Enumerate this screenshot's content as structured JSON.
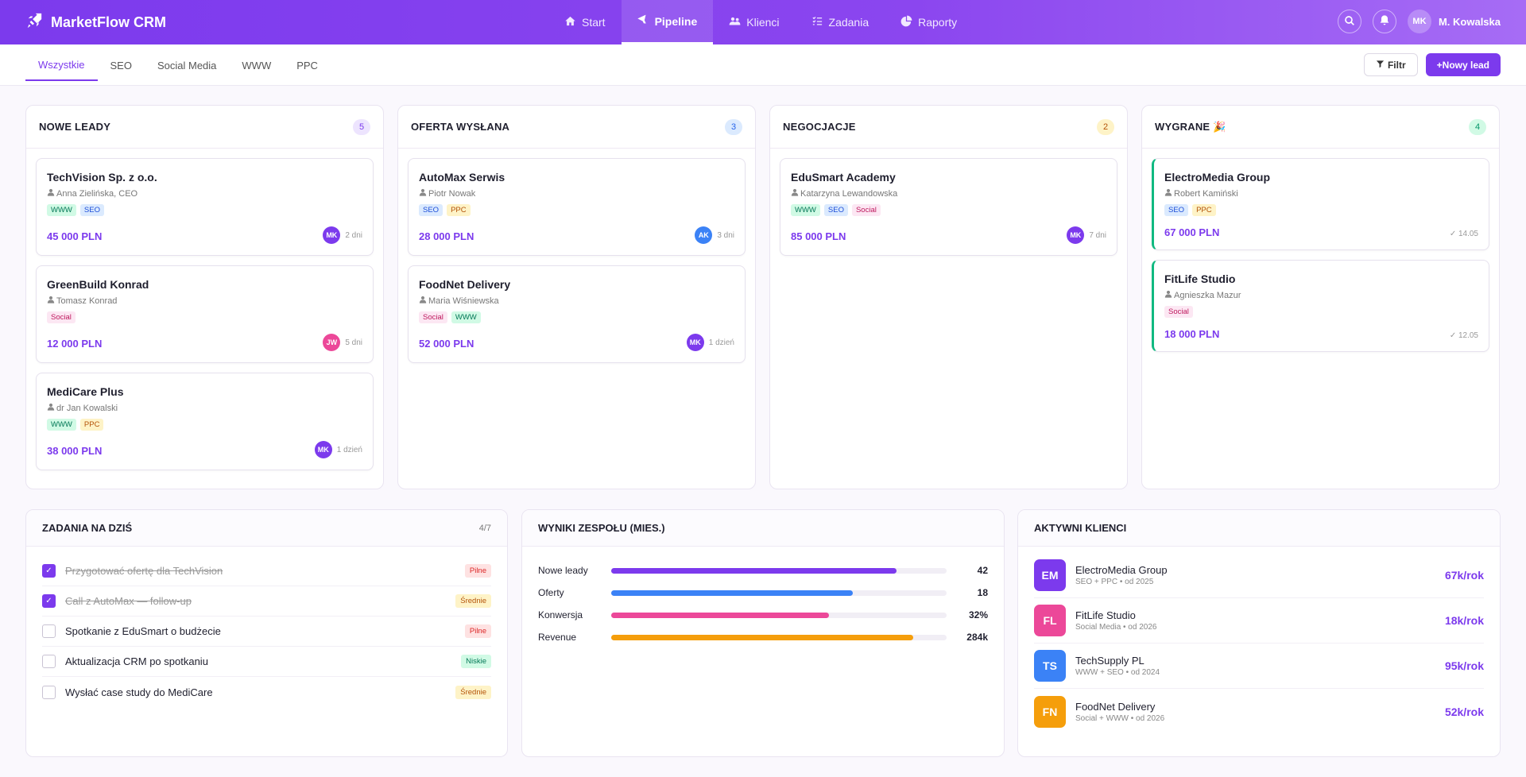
{
  "app": {
    "title": "MarketFlow CRM"
  },
  "nav": [
    {
      "label": "Start",
      "icon": "home-icon"
    },
    {
      "label": "Pipeline",
      "icon": "funnel-icon"
    },
    {
      "label": "Klienci",
      "icon": "users-icon"
    },
    {
      "label": "Zadania",
      "icon": "tasks-icon"
    },
    {
      "label": "Raporty",
      "icon": "pie-chart-icon"
    }
  ],
  "user": {
    "initials": "MK",
    "name": "M. Kowalska"
  },
  "filters": [
    "Wszystkie",
    "SEO",
    "Social Media",
    "WWW",
    "PPC"
  ],
  "actions": {
    "filter": "Filtr",
    "new_lead": "+Nowy lead"
  },
  "columns": [
    {
      "title": "NOWE LEADY",
      "count": "5",
      "cards": [
        {
          "title": "TechVision Sp. z o.o.",
          "contact": "Anna Zielińska, CEO",
          "tags": [
            "WWW",
            "SEO"
          ],
          "value": "45 000 PLN",
          "owner": "MK",
          "time": "2 dni"
        },
        {
          "title": "GreenBuild Konrad",
          "contact": "Tomasz Konrad",
          "tags": [
            "Social"
          ],
          "value": "12 000 PLN",
          "owner": "JW",
          "time": "5 dni"
        },
        {
          "title": "MediCare Plus",
          "contact": "dr Jan Kowalski",
          "tags": [
            "WWW",
            "PPC"
          ],
          "value": "38 000 PLN",
          "owner": "MK",
          "time": "1 dzień"
        }
      ]
    },
    {
      "title": "OFERTA WYSŁANA",
      "count": "3",
      "cards": [
        {
          "title": "AutoMax Serwis",
          "contact": "Piotr Nowak",
          "tags": [
            "SEO",
            "PPC"
          ],
          "value": "28 000 PLN",
          "owner": "AK",
          "time": "3 dni"
        },
        {
          "title": "FoodNet Delivery",
          "contact": "Maria Wiśniewska",
          "tags": [
            "Social",
            "WWW"
          ],
          "value": "52 000 PLN",
          "owner": "MK",
          "time": "1 dzień"
        }
      ]
    },
    {
      "title": "NEGOCJACJE",
      "count": "2",
      "cards": [
        {
          "title": "EduSmart Academy",
          "contact": "Katarzyna Lewandowska",
          "tags": [
            "WWW",
            "SEO",
            "Social"
          ],
          "value": "85 000 PLN",
          "owner": "MK",
          "time": "7 dni"
        }
      ]
    },
    {
      "title": "WYGRANE 🎉",
      "count": "4",
      "cards": [
        {
          "title": "ElectroMedia Group",
          "contact": "Robert Kamiński",
          "tags": [
            "SEO",
            "PPC"
          ],
          "value": "67 000 PLN",
          "date": "✓ 14.05"
        },
        {
          "title": "FitLife Studio",
          "contact": "Agnieszka Mazur",
          "tags": [
            "Social"
          ],
          "value": "18 000 PLN",
          "date": "✓ 12.05"
        }
      ]
    }
  ],
  "avatar_colors": {
    "MK": "#7c3aed",
    "JW": "#ec4899",
    "AK": "#3b82f6"
  },
  "tasks": {
    "title": "ZADANIA NA DZIŚ",
    "progress": "4/7",
    "items": [
      {
        "text": "Przygotować ofertę dla TechVision",
        "done": true,
        "priority": "Pilne"
      },
      {
        "text": "Call z AutoMax — follow-up",
        "done": true,
        "priority": "Średnie"
      },
      {
        "text": "Spotkanie z EduSmart o budżecie",
        "done": false,
        "priority": "Pilne"
      },
      {
        "text": "Aktualizacja CRM po spotkaniu",
        "done": false,
        "priority": "Niskie"
      },
      {
        "text": "Wysłać case study do MediCare",
        "done": false,
        "priority": "Średnie"
      }
    ]
  },
  "team": {
    "title": "WYNIKI ZESPOŁU (MIES.)",
    "metrics": [
      {
        "label": "Nowe leady",
        "value": "42",
        "fill": 0.85,
        "color": "#7c3aed"
      },
      {
        "label": "Oferty",
        "value": "18",
        "fill": 0.72,
        "color": "#3b82f6"
      },
      {
        "label": "Konwersja",
        "value": "32%",
        "fill": 0.65,
        "color": "#ec4899"
      },
      {
        "label": "Revenue",
        "value": "284k",
        "fill": 0.9,
        "color": "#f59e0b"
      }
    ]
  },
  "clients": {
    "title": "AKTYWNI KLIENCI",
    "items": [
      {
        "initials": "EM",
        "name": "ElectroMedia Group",
        "desc": "SEO + PPC • od 2025",
        "revenue": "67k/rok",
        "color": "#7c3aed"
      },
      {
        "initials": "FL",
        "name": "FitLife Studio",
        "desc": "Social Media • od 2026",
        "revenue": "18k/rok",
        "color": "#ec4899"
      },
      {
        "initials": "TS",
        "name": "TechSupply PL",
        "desc": "WWW + SEO • od 2024",
        "revenue": "95k/rok",
        "color": "#3b82f6"
      },
      {
        "initials": "FN",
        "name": "FoodNet Delivery",
        "desc": "Social + WWW • od 2026",
        "revenue": "52k/rok",
        "color": "#f59e0b"
      }
    ]
  }
}
